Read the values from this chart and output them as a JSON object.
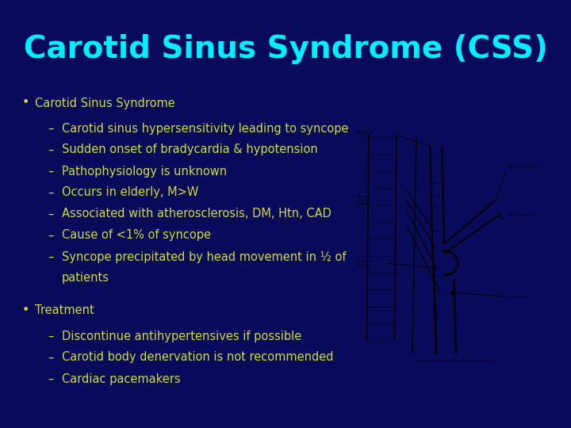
{
  "title": "Carotid Sinus Syndrome (CSS)",
  "title_color": "#00EEFF",
  "background_color": "#0A0A5A",
  "bullet_color": "#CCDD44",
  "bullet_fontsize": 10.5,
  "title_fontsize": 28,
  "bullets": [
    {
      "level": 0,
      "text": "Carotid Sinus Syndrome"
    },
    {
      "level": 1,
      "text": "Carotid sinus hypersensitivity leading to syncope"
    },
    {
      "level": 1,
      "text": "Sudden onset of bradycardia & hypotension"
    },
    {
      "level": 1,
      "text": "Pathophysiology is unknown"
    },
    {
      "level": 1,
      "text": "Occurs in elderly, M>W"
    },
    {
      "level": 1,
      "text": "Associated with atherosclerosis, DM, Htn, CAD"
    },
    {
      "level": 1,
      "text": "Cause of <1% of syncope"
    },
    {
      "level": 1,
      "text": "Syncope precipitated by head movement in ½ of patients",
      "wrap": true
    },
    {
      "level": 0,
      "text": "Treatment"
    },
    {
      "level": 1,
      "text": "Discontinue antihypertensives if possible"
    },
    {
      "level": 1,
      "text": "Carotid body denervation is not recommended"
    },
    {
      "level": 1,
      "text": "Cardiac pacemakers"
    }
  ],
  "figsize": [
    7.2,
    5.4
  ],
  "dpi": 100
}
